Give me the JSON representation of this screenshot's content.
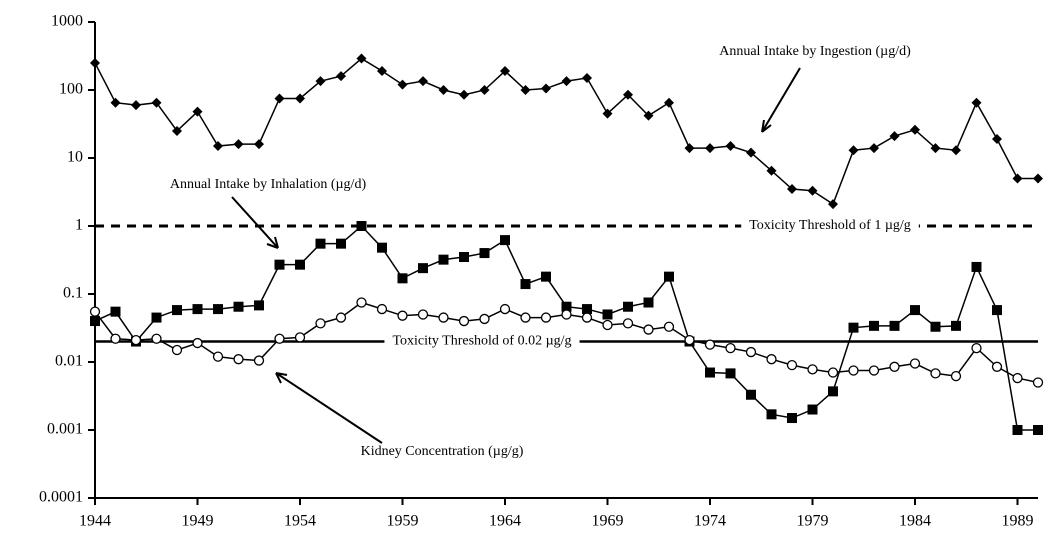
{
  "chart_data": {
    "type": "line",
    "log_y": true,
    "xlim": [
      1944,
      1990
    ],
    "xticks": [
      1944,
      1949,
      1954,
      1959,
      1964,
      1969,
      1974,
      1979,
      1984,
      1989
    ],
    "ylim": [
      0.0001,
      1000
    ],
    "yticks": [
      0.0001,
      0.001,
      0.01,
      0.1,
      1,
      10,
      100,
      1000
    ],
    "x": [
      1944,
      1945,
      1946,
      1947,
      1948,
      1949,
      1950,
      1951,
      1952,
      1953,
      1954,
      1955,
      1956,
      1957,
      1958,
      1959,
      1960,
      1961,
      1962,
      1963,
      1964,
      1965,
      1966,
      1967,
      1968,
      1969,
      1970,
      1971,
      1972,
      1973,
      1974,
      1975,
      1976,
      1977,
      1978,
      1979,
      1980,
      1981,
      1982,
      1983,
      1984,
      1985,
      1986,
      1987,
      1988,
      1989,
      1990
    ],
    "series": [
      {
        "name": "Annual Intake by Ingestion (µg/d)",
        "color": "#000000",
        "marker": "diamond",
        "values": [
          250,
          65,
          60,
          65,
          25,
          48,
          15,
          16,
          16,
          75,
          75,
          135,
          160,
          290,
          190,
          120,
          135,
          100,
          85,
          100,
          190,
          100,
          105,
          135,
          150,
          45,
          85,
          42,
          65,
          14,
          14,
          15,
          12,
          6.5,
          3.5,
          3.3,
          2.1,
          13,
          14,
          21,
          26,
          14,
          13,
          65,
          19,
          5,
          5
        ]
      },
      {
        "name": "Annual Intake by Inhalation (µg/d)",
        "color": "#000000",
        "marker": "square",
        "values": [
          0.04,
          0.055,
          0.02,
          0.045,
          0.058,
          0.06,
          0.06,
          0.065,
          0.068,
          0.27,
          0.27,
          0.55,
          0.55,
          1.0,
          0.48,
          0.17,
          0.24,
          0.32,
          0.35,
          0.4,
          0.62,
          0.14,
          0.18,
          0.065,
          0.06,
          0.05,
          0.065,
          0.075,
          0.18,
          0.02,
          0.007,
          0.0068,
          0.0033,
          0.0017,
          0.0015,
          0.002,
          0.0037,
          0.032,
          0.034,
          0.034,
          0.058,
          0.033,
          0.034,
          0.25,
          0.058,
          0.001,
          0.001
        ]
      },
      {
        "name": "Kidney Concentration (µg/g)",
        "color": "#000000",
        "marker": "circle",
        "values": [
          0.055,
          0.022,
          0.021,
          0.022,
          0.015,
          0.019,
          0.012,
          0.011,
          0.0105,
          0.022,
          0.023,
          0.037,
          0.045,
          0.075,
          0.06,
          0.048,
          0.05,
          0.045,
          0.04,
          0.043,
          0.06,
          0.045,
          0.045,
          0.05,
          0.045,
          0.035,
          0.037,
          0.03,
          0.033,
          0.021,
          0.018,
          0.016,
          0.014,
          0.011,
          0.009,
          0.0078,
          0.007,
          0.0075,
          0.0075,
          0.0085,
          0.0095,
          0.0068,
          0.0062,
          0.016,
          0.0085,
          0.0058,
          0.005
        ]
      }
    ],
    "thresholds": [
      {
        "value": 1,
        "label": "Toxicity Threshold of 1 µg/g",
        "style": "dashed"
      },
      {
        "value": 0.02,
        "label": "Toxicity Threshold of 0.02 µg/g",
        "style": "solid"
      }
    ]
  }
}
